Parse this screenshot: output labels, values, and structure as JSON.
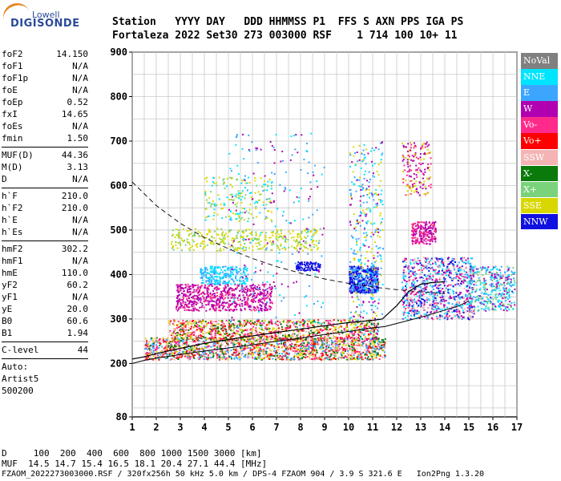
{
  "logo": {
    "top": "Lowell",
    "main": "DIGISONDE"
  },
  "header": {
    "row1": "Station   YYYY DAY   DDD HHMMSS P1  FFS S AXN PPS IGA PS",
    "row2": "Fortaleza 2022 Set30 273 003000 RSF    1 714 100 10+ 11"
  },
  "params": {
    "group1": [
      {
        "label": "foF2",
        "value": "14.150"
      },
      {
        "label": "foF1",
        "value": "N/A"
      },
      {
        "label": "foF1p",
        "value": "N/A"
      },
      {
        "label": "foE",
        "value": "N/A"
      },
      {
        "label": "foEp",
        "value": "0.52"
      },
      {
        "label": "fxI",
        "value": "14.65"
      },
      {
        "label": "foEs",
        "value": "N/A"
      },
      {
        "label": "fmin",
        "value": "1.50"
      }
    ],
    "group2": [
      {
        "label": "MUF(D)",
        "value": "44.36"
      },
      {
        "label": "M(D)",
        "value": "3.13"
      },
      {
        "label": "D",
        "value": "N/A"
      }
    ],
    "group3": [
      {
        "label": "h`F",
        "value": "210.0"
      },
      {
        "label": "h`F2",
        "value": "210.0"
      },
      {
        "label": "h`E",
        "value": "N/A"
      },
      {
        "label": "h`Es",
        "value": "N/A"
      }
    ],
    "group4": [
      {
        "label": "hmF2",
        "value": "302.2"
      },
      {
        "label": "hmF1",
        "value": "N/A"
      },
      {
        "label": "hmE",
        "value": "110.0"
      },
      {
        "label": "yF2",
        "value": "60.2"
      },
      {
        "label": "yF1",
        "value": "N/A"
      },
      {
        "label": "yE",
        "value": "20.0"
      },
      {
        "label": "B0",
        "value": "60.6"
      },
      {
        "label": "B1",
        "value": "1.94"
      }
    ],
    "group5": [
      {
        "label": "C-level",
        "value": "44"
      }
    ],
    "auto": [
      "Auto:",
      "Artist5",
      "500200"
    ]
  },
  "legend": [
    {
      "label": "NoVal",
      "color": "#808080"
    },
    {
      "label": "NNE",
      "color": "#00e5ff"
    },
    {
      "label": "E",
      "color": "#3ca6ff"
    },
    {
      "label": "W",
      "color": "#b000b0"
    },
    {
      "label": "Vo-",
      "color": "#ff2a8c"
    },
    {
      "label": "Vo+",
      "color": "#ff0000"
    },
    {
      "label": "SSW",
      "color": "#f4b4b4"
    },
    {
      "label": "X-",
      "color": "#0a7a0a"
    },
    {
      "label": "X+",
      "color": "#7ad27a"
    },
    {
      "label": "SSE",
      "color": "#d8d800"
    },
    {
      "label": "NNW",
      "color": "#1010e0"
    }
  ],
  "footer": {
    "d_row": "D     100  200  400  600  800 1000 1500 3000 [km]",
    "muf_row": "MUF  14.5 14.7 15.4 16.5 18.1 20.4 27.1 44.4 [MHz]",
    "info_row": "FZAOM_2022273003000.RSF / 320fx256h 50 kHz 5.0 km / DPS-4 FZAOM 904 / 3.9 S 321.6 E   Ion2Png 1.3.20"
  },
  "chart_data": {
    "type": "scatter",
    "xlim": [
      1,
      17
    ],
    "ylim": [
      80,
      900
    ],
    "x_ticks": [
      1,
      2,
      3,
      4,
      5,
      6,
      7,
      8,
      9,
      10,
      11,
      12,
      13,
      14,
      15,
      16,
      17
    ],
    "y_ticks": [
      80,
      200,
      300,
      400,
      500,
      600,
      700,
      800,
      900
    ],
    "grid": true,
    "legend_position": "right",
    "trace_curve": {
      "x": [
        1.0,
        1.5,
        2.0,
        3.0,
        4.0,
        5.0,
        6.0,
        7.0,
        8.0,
        9.0,
        10.0,
        11.0,
        11.5,
        12.0,
        12.5,
        13.0,
        13.5,
        14.0,
        14.5,
        15.0
      ],
      "y": [
        200,
        207,
        212,
        220,
        228,
        235,
        242,
        250,
        257,
        265,
        272,
        280,
        283,
        290,
        297,
        304,
        312,
        320,
        328,
        340
      ]
    },
    "profile_curve": {
      "x": [
        1.0,
        1.5,
        2.0,
        3.0,
        4.0,
        5.0,
        6.0,
        7.0,
        8.0,
        9.0,
        10.0,
        11.0,
        11.4,
        12.0,
        12.5,
        13.0,
        13.5,
        14.0
      ],
      "y": [
        210,
        215,
        222,
        234,
        245,
        254,
        262,
        270,
        277,
        285,
        292,
        297,
        300,
        330,
        362,
        378,
        382,
        384
      ]
    },
    "dashed_curve": {
      "x": [
        1.0,
        2.0,
        3.0,
        4.0,
        5.0,
        6.0,
        7.0,
        8.0,
        9.0,
        10.0,
        11.0,
        12.0,
        13.0,
        14.0
      ],
      "y": [
        608,
        555,
        515,
        483,
        458,
        436,
        418,
        403,
        390,
        380,
        372,
        366,
        361,
        357
      ]
    },
    "echo_regions": [
      {
        "x": [
          1.5,
          11.5
        ],
        "y": [
          210,
          260
        ],
        "density": 1700,
        "mix": [
          "SSW",
          "Vo+",
          "Vo-",
          "SSE",
          "X-",
          "E"
        ]
      },
      {
        "x": [
          2.5,
          11.2
        ],
        "y": [
          255,
          300
        ],
        "density": 1000,
        "mix": [
          "Vo+",
          "Vo-",
          "SSW",
          "SSE",
          "X-"
        ]
      },
      {
        "x": [
          2.8,
          6.8
        ],
        "y": [
          320,
          380
        ],
        "density": 650,
        "mix": [
          "W",
          "W",
          "Vo-"
        ]
      },
      {
        "x": [
          3.8,
          5.8
        ],
        "y": [
          380,
          420
        ],
        "density": 240,
        "mix": [
          "E",
          "NNE"
        ]
      },
      {
        "x": [
          2.6,
          8.8
        ],
        "y": [
          455,
          505
        ],
        "density": 360,
        "mix": [
          "SSE",
          "SSE",
          "X+"
        ]
      },
      {
        "x": [
          4.0,
          6.8
        ],
        "y": [
          520,
          620
        ],
        "density": 180,
        "mix": [
          "SSE",
          "X+",
          "NNE"
        ]
      },
      {
        "x": [
          5.0,
          9.0
        ],
        "y": [
          280,
          720
        ],
        "density": 220,
        "mix": [
          "W",
          "NNE",
          "E"
        ]
      },
      {
        "x": [
          10.0,
          11.2
        ],
        "y": [
          360,
          420
        ],
        "density": 460,
        "mix": [
          "NNW",
          "NNW",
          "E"
        ]
      },
      {
        "x": [
          10.0,
          11.4
        ],
        "y": [
          250,
          700
        ],
        "density": 380,
        "mix": [
          "NNE",
          "E",
          "SSE",
          "W"
        ]
      },
      {
        "x": [
          12.2,
          15.2
        ],
        "y": [
          300,
          440
        ],
        "density": 900,
        "mix": [
          "E",
          "NNE",
          "W",
          "Vo-",
          "NNW",
          "SSW"
        ]
      },
      {
        "x": [
          12.6,
          13.6
        ],
        "y": [
          470,
          520
        ],
        "density": 200,
        "mix": [
          "W",
          "Vo-"
        ]
      },
      {
        "x": [
          12.2,
          13.4
        ],
        "y": [
          580,
          700
        ],
        "density": 160,
        "mix": [
          "W",
          "SSE",
          "Vo-"
        ]
      },
      {
        "x": [
          15.0,
          16.9
        ],
        "y": [
          320,
          420
        ],
        "density": 360,
        "mix": [
          "NNE",
          "E",
          "W",
          "X+"
        ]
      },
      {
        "x": [
          7.8,
          8.8
        ],
        "y": [
          410,
          430
        ],
        "density": 90,
        "mix": [
          "NNW"
        ]
      }
    ]
  }
}
